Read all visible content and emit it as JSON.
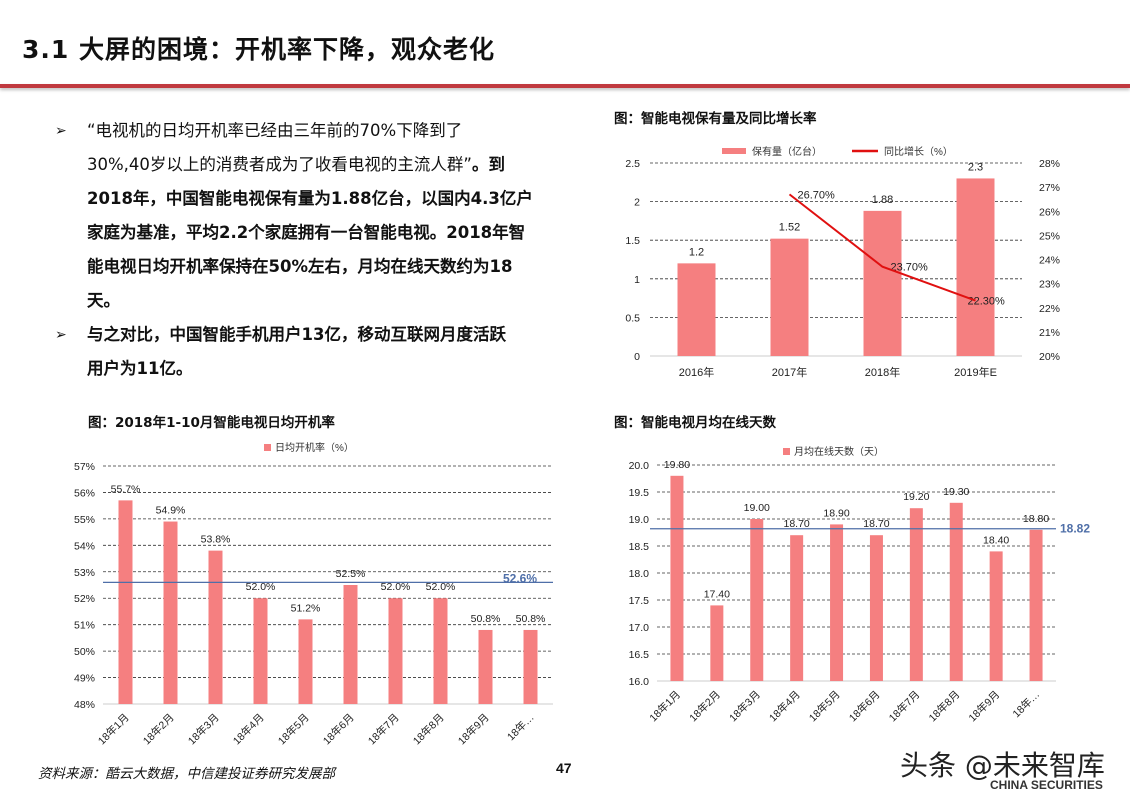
{
  "header": {
    "title": "3.1 大屏的困境：开机率下降，观众老化"
  },
  "bullets": [
    {
      "lines": [
        [
          {
            "text": "“电视机的日均开机率已经由三年前的70%下降到了",
            "bold": false
          }
        ],
        [
          {
            "text": "30%,40岁以上的消费者成为了收看电视的主流人群”",
            "bold": false
          },
          {
            "text": "。到",
            "bold": true
          }
        ],
        [
          {
            "text": "2018年，中国智能电视保有量为1.88亿台，以国内4.3亿户",
            "bold": true
          }
        ],
        [
          {
            "text": "家庭为基准，平均2.2个家庭拥有一台智能电视。2018年智",
            "bold": true
          }
        ],
        [
          {
            "text": "能电视日均开机率保持在50%左右，月均在线天数约为18",
            "bold": true
          }
        ],
        [
          {
            "text": "天。",
            "bold": true
          }
        ]
      ]
    },
    {
      "lines": [
        [
          {
            "text": "与之对比，中国智能手机用户13亿，移动互联网月度活跃",
            "bold": true
          }
        ],
        [
          {
            "text": "用户为11亿。",
            "bold": true
          }
        ]
      ]
    }
  ],
  "bullet_icon": "arrow-right-icon",
  "colors": {
    "bar": "#f57f80",
    "line": "#e01010",
    "avg": "#4f6fa8",
    "accent": "#c0393f"
  },
  "chart_data": [
    {
      "type": "bar+line",
      "title": "图：智能电视保有量及同比增长率",
      "categories": [
        "2016年",
        "2017年",
        "2018年",
        "2019年E"
      ],
      "series": [
        {
          "name": "保有量（亿台）",
          "type": "bar",
          "axis": "left",
          "values": [
            1.2,
            1.52,
            1.88,
            2.3
          ],
          "labels": [
            "1.2",
            "1.52",
            "1.88",
            "2.3"
          ]
        },
        {
          "name": "同比增长（%）",
          "type": "line",
          "axis": "right",
          "values": [
            null,
            26.7,
            23.7,
            22.3
          ],
          "labels": [
            "",
            "26.70%",
            "23.70%",
            "22.30%"
          ]
        }
      ],
      "ylim": [
        0,
        2.5
      ],
      "yticks": [
        "0",
        "0.5",
        "1",
        "1.5",
        "2",
        "2.5"
      ],
      "y2lim": [
        20,
        28
      ],
      "y2ticks": [
        "20%",
        "21%",
        "22%",
        "23%",
        "24%",
        "25%",
        "26%",
        "27%",
        "28%"
      ],
      "grid": true,
      "legend": "top"
    },
    {
      "type": "bar",
      "title": "图：2018年1-10月智能电视日均开机率",
      "categories": [
        "18年1月",
        "18年2月",
        "18年3月",
        "18年4月",
        "18年5月",
        "18年6月",
        "18年7月",
        "18年8月",
        "18年9月",
        "18年…"
      ],
      "series": [
        {
          "name": "日均开机率（%）",
          "values": [
            55.7,
            54.9,
            53.8,
            52.0,
            51.2,
            52.5,
            52.0,
            52.0,
            50.8,
            50.8
          ],
          "labels": [
            "55.7%",
            "54.9%",
            "53.8%",
            "52.0%",
            "51.2%",
            "52.5%",
            "52.0%",
            "52.0%",
            "50.8%",
            "50.8%"
          ]
        }
      ],
      "average": {
        "value": 52.6,
        "label": "52.6%"
      },
      "ylim": [
        48,
        57
      ],
      "yticks": [
        "48%",
        "49%",
        "50%",
        "51%",
        "52%",
        "53%",
        "54%",
        "55%",
        "56%",
        "57%"
      ],
      "grid": true,
      "legend": "top"
    },
    {
      "type": "bar",
      "title": "图：智能电视月均在线天数",
      "categories": [
        "18年1月",
        "18年2月",
        "18年3月",
        "18年4月",
        "18年5月",
        "18年6月",
        "18年7月",
        "18年8月",
        "18年9月",
        "18年…"
      ],
      "series": [
        {
          "name": "月均在线天数（天）",
          "values": [
            19.8,
            17.4,
            19.0,
            18.7,
            18.9,
            18.7,
            19.2,
            19.3,
            18.4,
            18.8
          ],
          "labels": [
            "19.80",
            "17.40",
            "19.00",
            "18.70",
            "18.90",
            "18.70",
            "19.20",
            "19.30",
            "18.40",
            "18.80"
          ]
        }
      ],
      "average": {
        "value": 18.82,
        "label": "18.82"
      },
      "ylim": [
        16,
        20
      ],
      "yticks": [
        "16.0",
        "16.5",
        "17.0",
        "17.5",
        "18.0",
        "18.5",
        "19.0",
        "19.5",
        "20.0"
      ],
      "grid": true,
      "legend": "top"
    }
  ],
  "footer": {
    "source": "资料来源：酷云大数据，中信建投证券研究发展部",
    "page": "47",
    "watermark": "头条 @未来智库",
    "logo_text": "CHINA SECURITIES"
  }
}
